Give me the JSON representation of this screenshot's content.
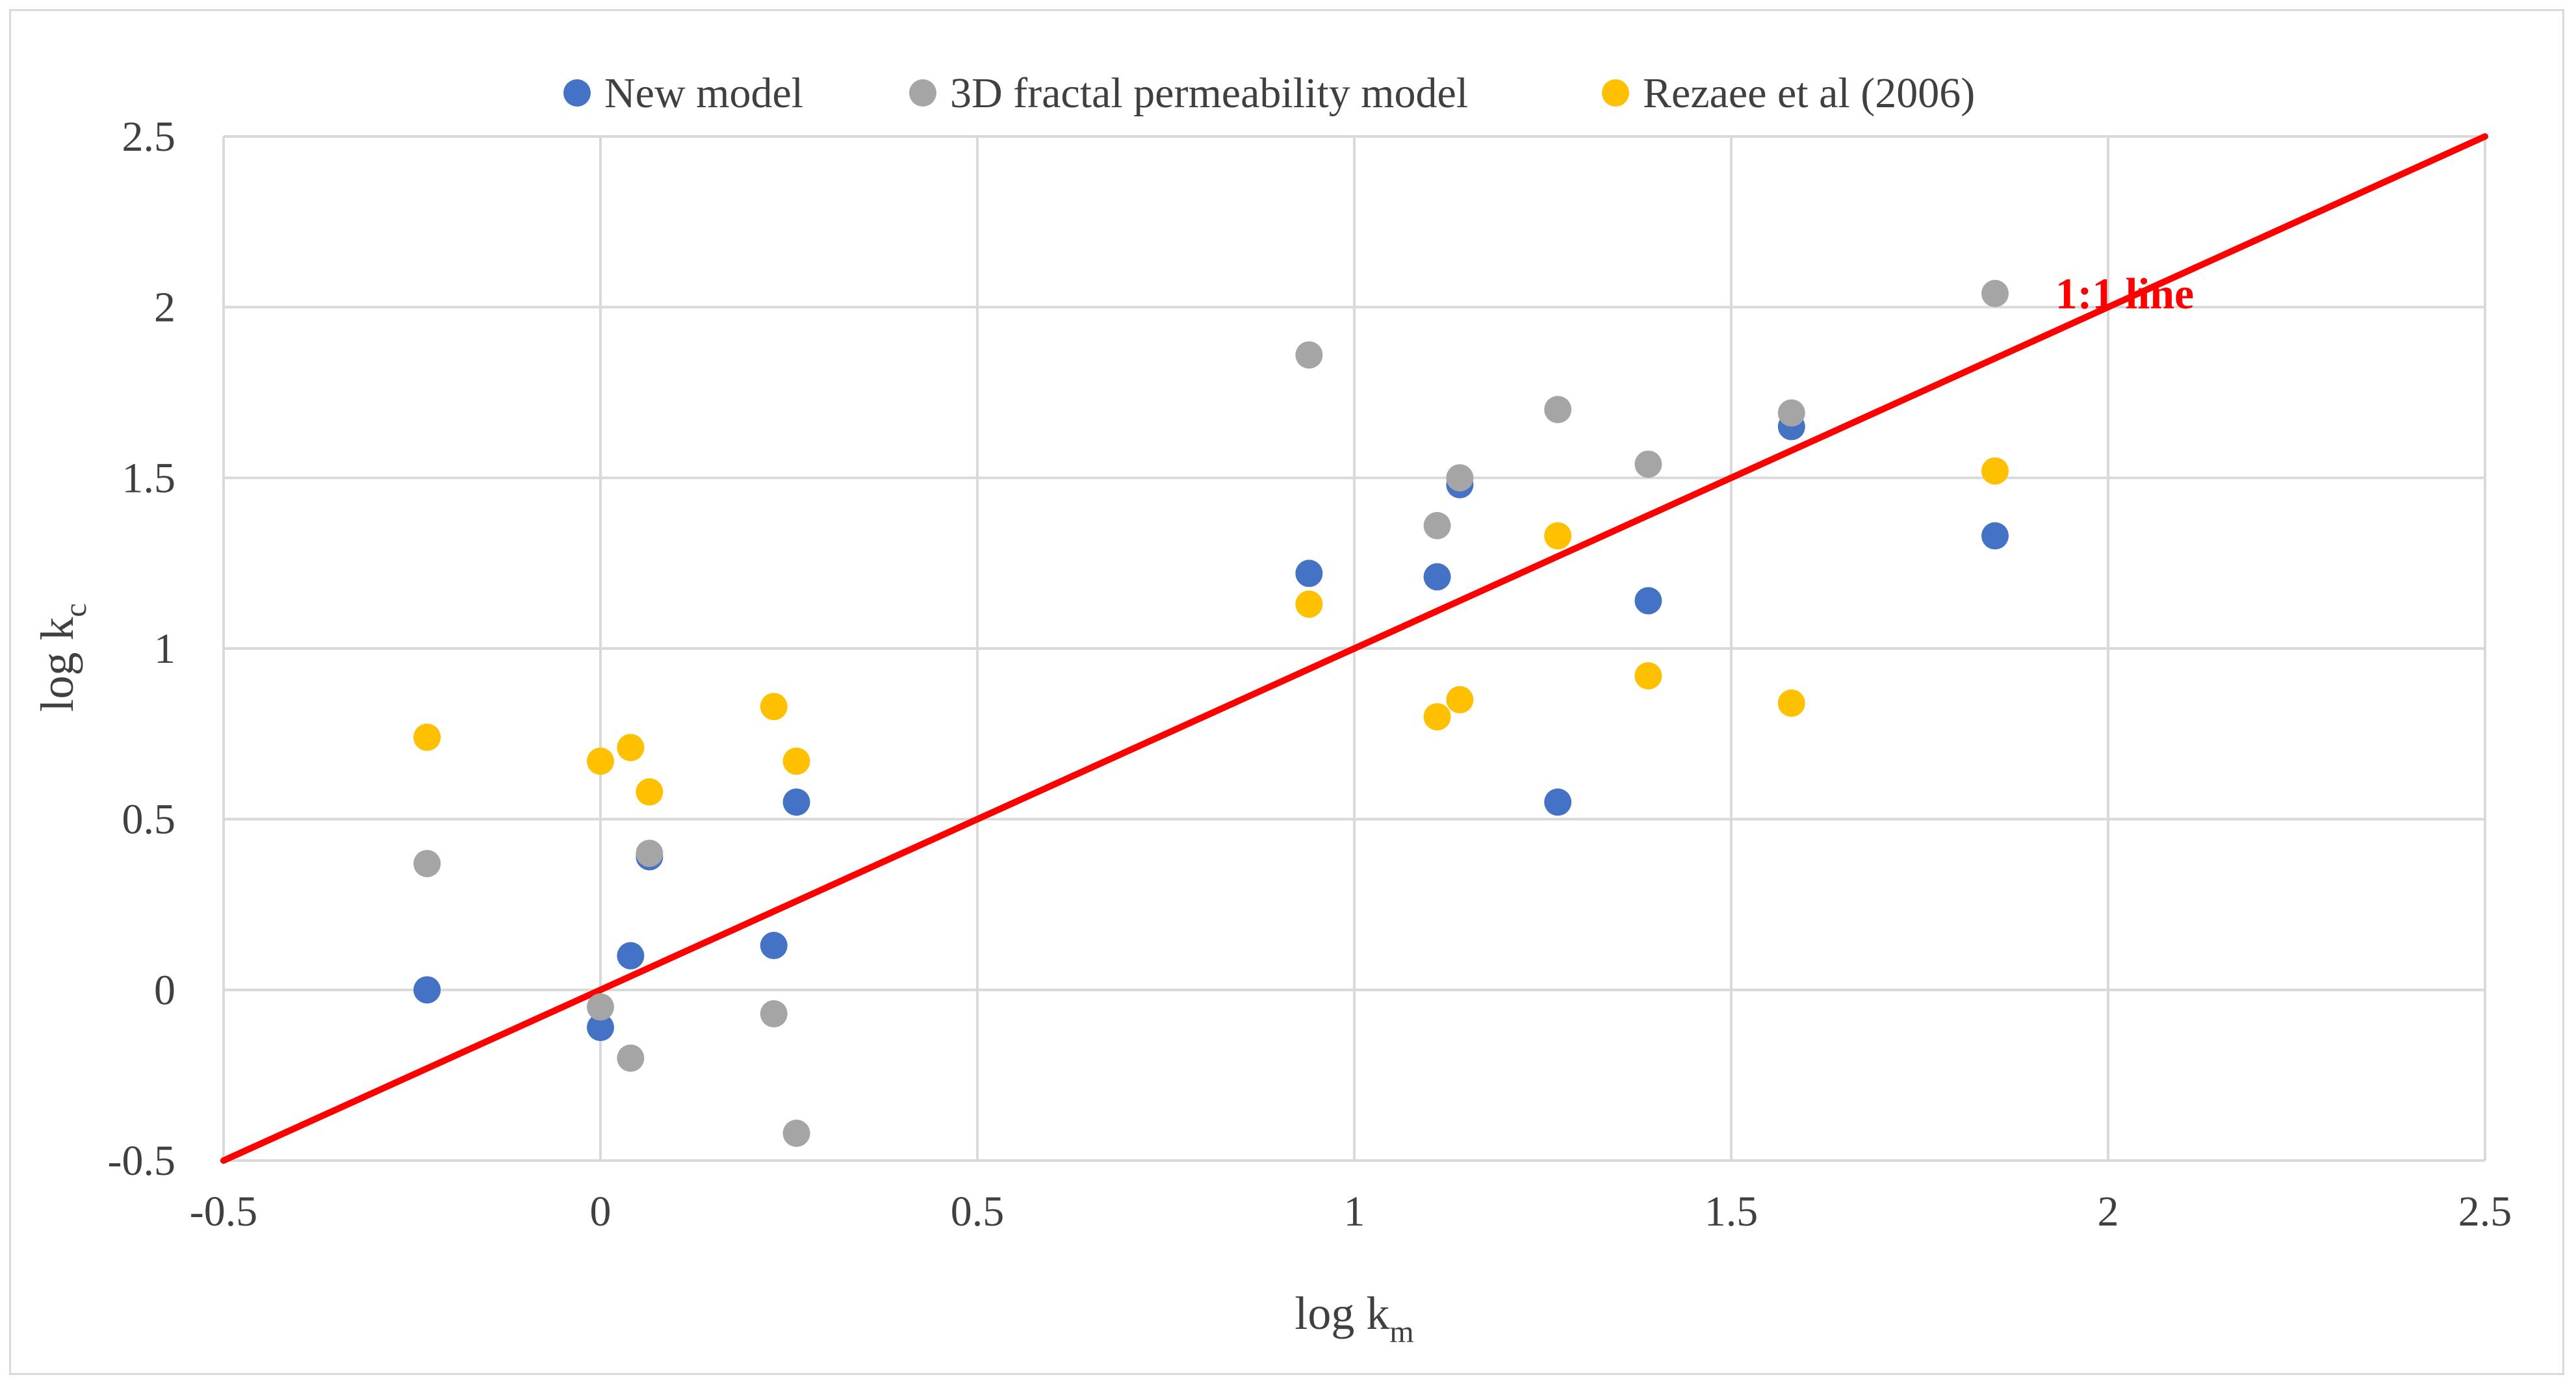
{
  "chart_data": {
    "type": "scatter",
    "xlabel": {
      "base": "log k",
      "sub": "m"
    },
    "ylabel": {
      "base": "log k",
      "sub": "c"
    },
    "xlim": [
      -0.5,
      2.5
    ],
    "ylim": [
      -0.5,
      2.5
    ],
    "xticks": [
      -0.5,
      0,
      0.5,
      1,
      1.5,
      2,
      2.5
    ],
    "yticks": [
      -0.5,
      0,
      0.5,
      1,
      1.5,
      2,
      2.5
    ],
    "xtick_labels": [
      "-0.5",
      "0",
      "0.5",
      "1",
      "1.5",
      "2",
      "2.5"
    ],
    "ytick_labels": [
      "-0.5",
      "0",
      "0.5",
      "1",
      "1.5",
      "2",
      "2.5"
    ],
    "grid": true,
    "legend_position": "top",
    "series": [
      {
        "name": "New model",
        "color": "#4472c4",
        "points": [
          [
            -0.23,
            0.0
          ],
          [
            0.0,
            -0.11
          ],
          [
            0.04,
            0.1
          ],
          [
            0.065,
            0.39
          ],
          [
            0.23,
            0.13
          ],
          [
            0.26,
            0.55
          ],
          [
            0.94,
            1.22
          ],
          [
            1.11,
            1.21
          ],
          [
            1.14,
            1.48
          ],
          [
            1.27,
            0.55
          ],
          [
            1.39,
            1.14
          ],
          [
            1.58,
            1.65
          ],
          [
            1.85,
            1.33
          ]
        ]
      },
      {
        "name": "3D fractal permeability model",
        "color": "#a5a5a5",
        "points": [
          [
            -0.23,
            0.37
          ],
          [
            0.0,
            -0.05
          ],
          [
            0.04,
            -0.2
          ],
          [
            0.065,
            0.4
          ],
          [
            0.23,
            -0.07
          ],
          [
            0.26,
            -0.42
          ],
          [
            0.94,
            1.86
          ],
          [
            1.11,
            1.36
          ],
          [
            1.14,
            1.5
          ],
          [
            1.27,
            1.7
          ],
          [
            1.39,
            1.54
          ],
          [
            1.58,
            1.69
          ],
          [
            1.85,
            2.04
          ]
        ]
      },
      {
        "name": "Rezaee et al (2006)",
        "color": "#ffc000",
        "points": [
          [
            -0.23,
            0.74
          ],
          [
            0.0,
            0.67
          ],
          [
            0.04,
            0.71
          ],
          [
            0.065,
            0.58
          ],
          [
            0.23,
            0.83
          ],
          [
            0.26,
            0.67
          ],
          [
            0.94,
            1.13
          ],
          [
            1.11,
            0.8
          ],
          [
            1.14,
            0.85
          ],
          [
            1.27,
            1.33
          ],
          [
            1.39,
            0.92
          ],
          [
            1.58,
            0.84
          ],
          [
            1.85,
            1.52
          ]
        ]
      }
    ],
    "reference_line": {
      "label": "1:1 line",
      "color": "#ff0000",
      "from": [
        -0.5,
        -0.5
      ],
      "to": [
        2.5,
        2.5
      ]
    }
  }
}
